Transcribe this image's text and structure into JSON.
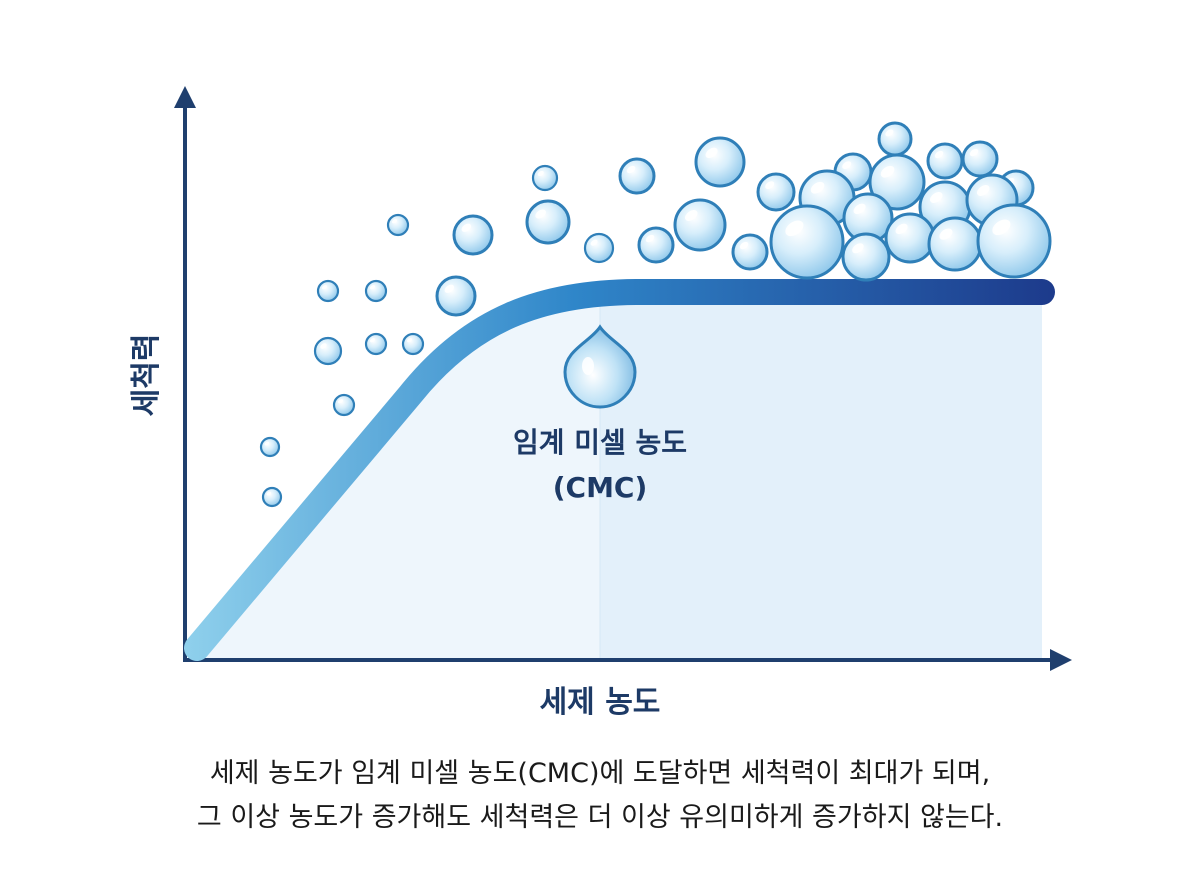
{
  "diagram": {
    "y_axis_label": "세척력",
    "x_axis_label": "세제 농도",
    "cmc_label_line1": "임계 미셀 농도",
    "cmc_label_line2": "(CMC)",
    "colors": {
      "axis": "#1f3f6e",
      "curve_start": "#8fd0ec",
      "curve_end": "#1d3b8c",
      "fill_light": "#eef6fc",
      "fill_dark": "#e1f0fa",
      "bubble_fill": "#cfe9f8",
      "bubble_stroke": "#2f7fb8"
    },
    "icons": [
      "drop-icon",
      "bubble-icon"
    ]
  },
  "caption": {
    "line1": "세제 농도가 임계 미셀 농도(CMC)에 도달하면 세척력이 최대가 되며,",
    "line2": "그 이상 농도가 증가해도 세척력은 더 이상 유의미하게 증가하지 않는다."
  }
}
